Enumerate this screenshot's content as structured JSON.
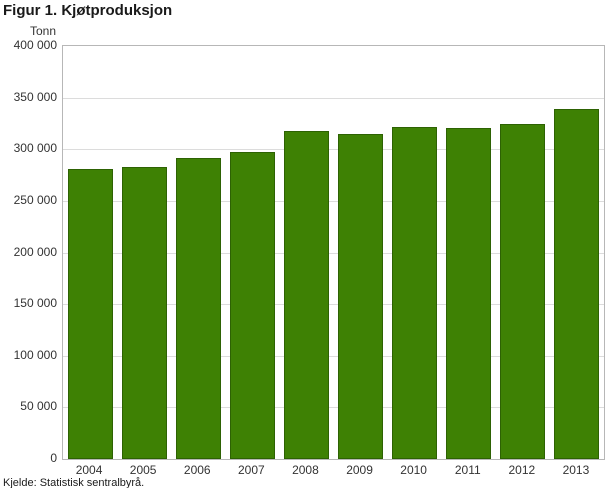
{
  "chart_data": {
    "type": "bar",
    "title": "Figur 1. Kjøtproduksjon",
    "ylabel": "Tonn",
    "categories": [
      "2004",
      "2005",
      "2006",
      "2007",
      "2008",
      "2009",
      "2010",
      "2011",
      "2012",
      "2013"
    ],
    "values": [
      281000,
      283000,
      292000,
      297000,
      318000,
      315000,
      322000,
      321000,
      324000,
      339000
    ],
    "ylim": [
      0,
      400000
    ],
    "ytick_step": 50000,
    "grid": true,
    "legend": "none",
    "bar_color": "#3e8104",
    "bar_border_color": "#2d6203",
    "source": "Kjelde: Statistisk sentralbyrå."
  }
}
